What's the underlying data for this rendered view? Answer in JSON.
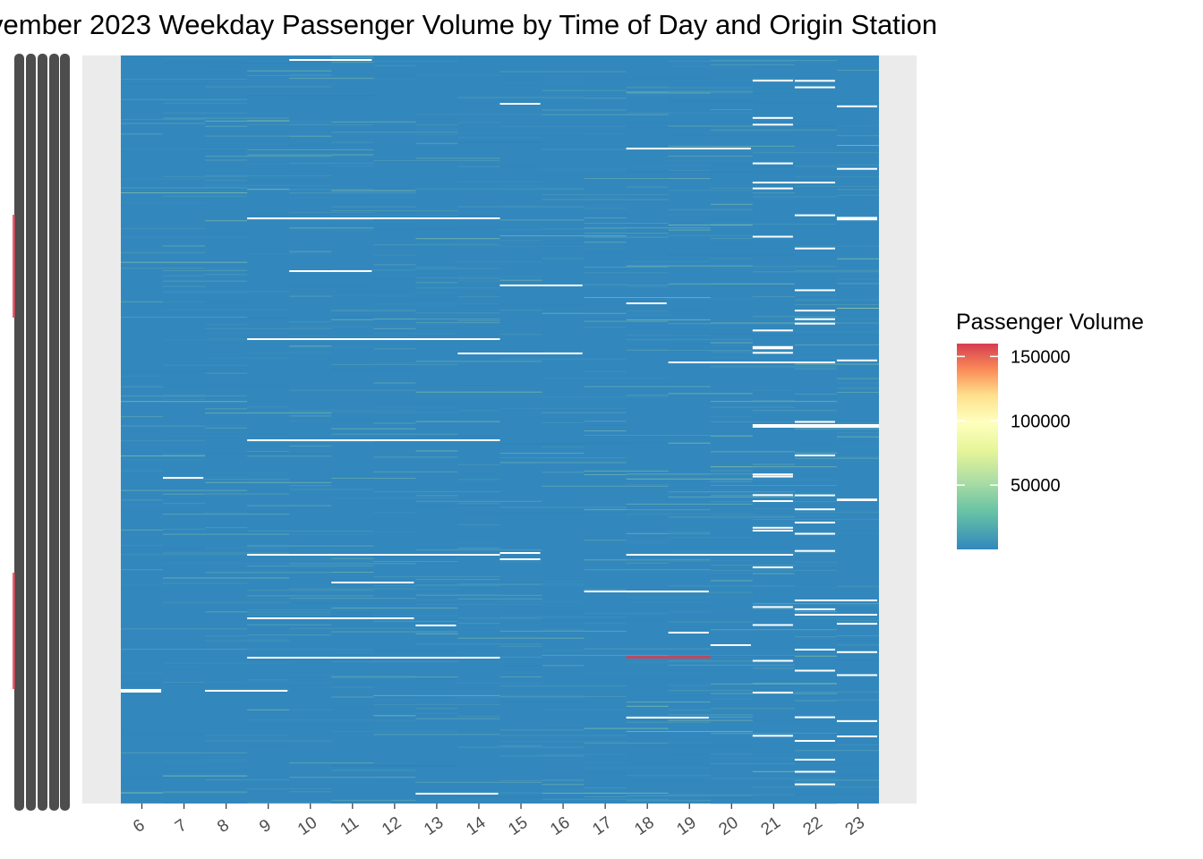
{
  "chart_data": {
    "type": "heatmap",
    "title": "vember 2023 Weekday Passenger Volume by Time of Day and Origin Station",
    "xlabel": "",
    "ylabel": "",
    "x": [
      6,
      7,
      8,
      9,
      10,
      11,
      12,
      13,
      14,
      15,
      16,
      17,
      18,
      19,
      20,
      21,
      22,
      23
    ],
    "y_categories": "origin stations (labels overlapping and illegible)",
    "legend": {
      "title": "Passenger Volume",
      "ticks": [
        50000,
        100000,
        150000
      ],
      "range": [
        0,
        160000
      ],
      "colors": [
        "#3288bd",
        "#99d594",
        "#e6f598",
        "#ffffbf",
        "#fee08b",
        "#fc8d59",
        "#d53e4f"
      ],
      "placement": "right"
    },
    "grid": false,
    "panel_background": "#ebebeb",
    "typical_cell_color": "#3288bd",
    "notable_cells": [
      {
        "hour": 18,
        "value": 150000,
        "note": "single red cell near lower-middle"
      },
      {
        "hour": 19,
        "value": 140000,
        "note": "adjacent red cell"
      }
    ]
  }
}
